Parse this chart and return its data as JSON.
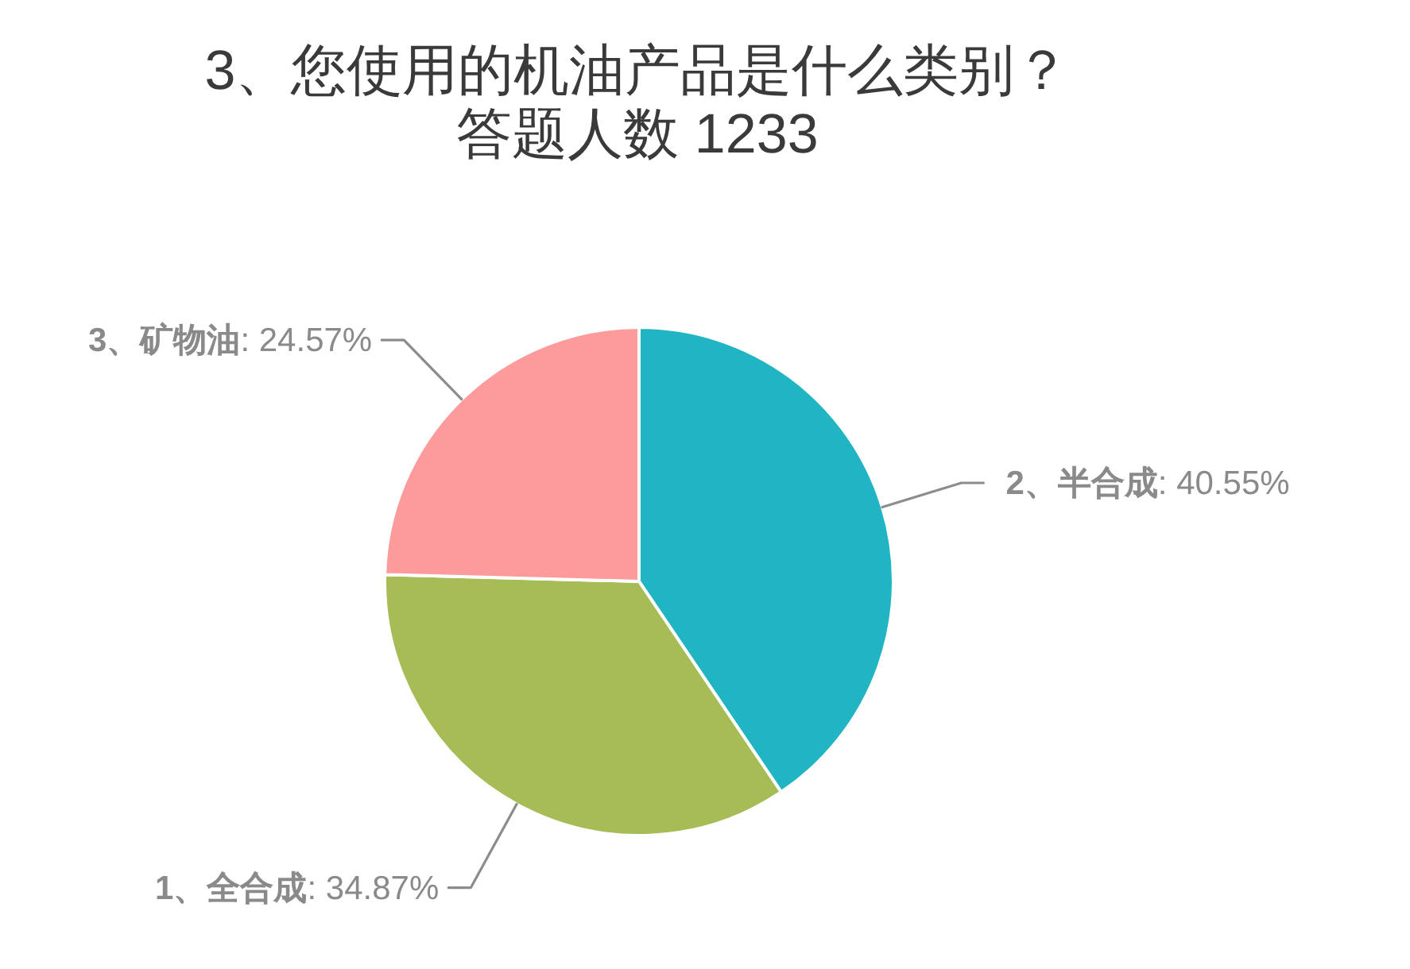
{
  "chart_data": {
    "type": "pie",
    "title": "3、您使用的机油产品是什么类别？",
    "subtitle": "答题人数 1233",
    "categories": [
      "2、半合成",
      "1、全合成",
      "3、矿物油"
    ],
    "values": [
      40.55,
      34.87,
      24.57
    ],
    "colors": [
      "#21b5c4",
      "#a6bd56",
      "#fd9a9b"
    ],
    "value_labels": [
      ": 40.55%",
      ": 34.87%",
      ": 24.57%"
    ]
  }
}
